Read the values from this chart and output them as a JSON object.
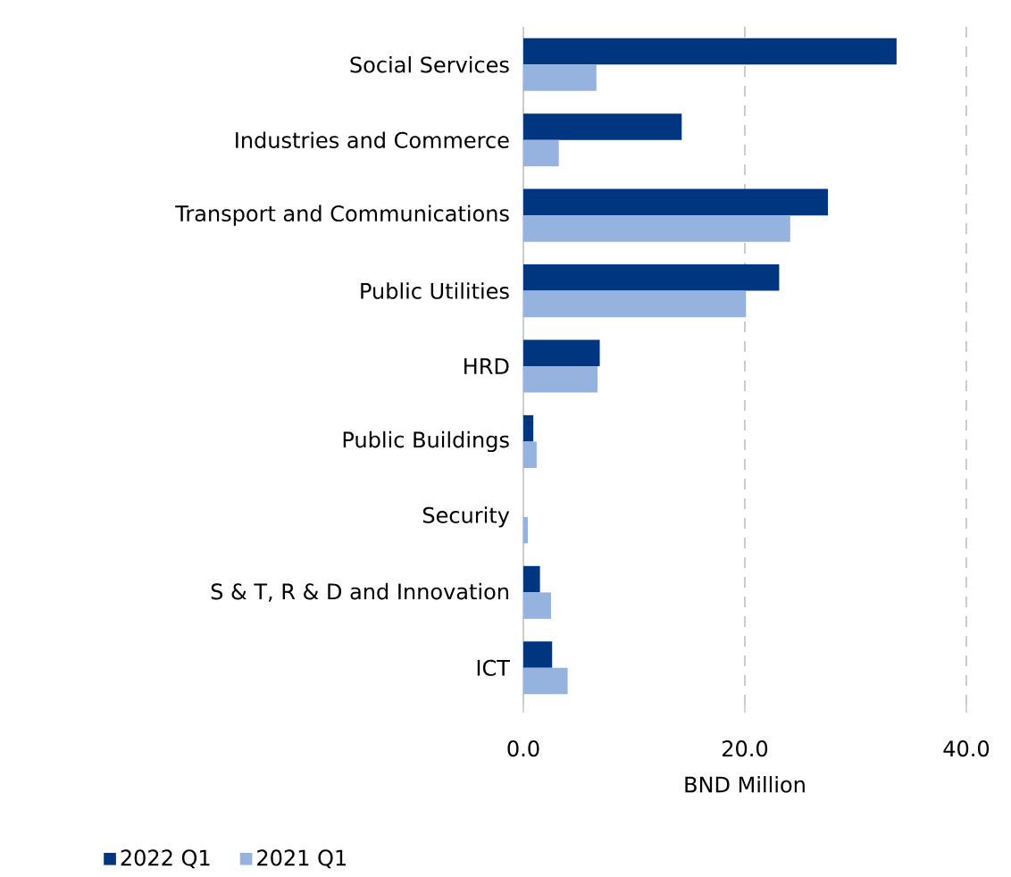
{
  "chart_data": {
    "type": "bar",
    "orientation": "horizontal",
    "xlabel": "BND Million",
    "categories": [
      "Social Services",
      "Industries and Commerce",
      "Transport and Communications",
      "Public Utilities",
      "HRD",
      "Public Buildings",
      "Security",
      "S & T, R & D and Innovation",
      "ICT"
    ],
    "series": [
      {
        "name": "2022 Q1",
        "color": "#003580",
        "values": [
          33.7,
          14.3,
          27.5,
          23.1,
          6.9,
          0.9,
          0.0,
          1.5,
          2.6
        ]
      },
      {
        "name": "2021 Q1",
        "color": "#95b3de",
        "values": [
          6.6,
          3.2,
          24.1,
          20.1,
          6.7,
          1.2,
          0.4,
          2.5,
          4.0
        ]
      }
    ],
    "xlim": [
      0,
      40
    ],
    "xticks": [
      {
        "value": 0,
        "label": "0.0"
      },
      {
        "value": 20,
        "label": "20.0"
      },
      {
        "value": 40,
        "label": "40.0"
      }
    ],
    "grid": "x",
    "legend": "bottom left"
  }
}
